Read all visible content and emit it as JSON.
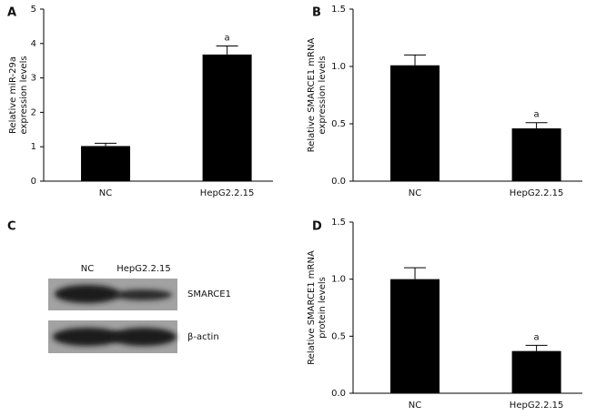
{
  "chart_data": [
    {
      "type": "bar",
      "panel": "A",
      "ylabel": [
        "Relative miR-29a",
        "expression levels"
      ],
      "categories": [
        "NC",
        "HepG2.2.15"
      ],
      "values": [
        1.02,
        3.68
      ],
      "errors": [
        0.08,
        0.25
      ],
      "significance": [
        null,
        "a"
      ],
      "color": "#000000",
      "ylim": [
        0,
        5
      ],
      "yticks": [
        0,
        1,
        2,
        3,
        4,
        5
      ]
    },
    {
      "type": "bar",
      "panel": "B",
      "ylabel": [
        "Relative SMARCE1 mRNA",
        "expression levels"
      ],
      "categories": [
        "NC",
        "HepG2.2.15"
      ],
      "values": [
        1.01,
        0.46
      ],
      "errors": [
        0.09,
        0.05
      ],
      "significance": [
        null,
        "a"
      ],
      "color": "#000000",
      "ylim": [
        0,
        1.5
      ],
      "yticks": [
        {
          "value": 0,
          "label": "0.0"
        },
        0.5,
        {
          "value": 1,
          "label": "1.0"
        },
        1.5
      ]
    },
    {
      "type": "bar",
      "panel": "D",
      "ylabel": [
        "Relative SMARCE1 mRNA",
        "protein levels"
      ],
      "categories": [
        "NC",
        "HepG2.2.15"
      ],
      "values": [
        1.0,
        0.37
      ],
      "errors": [
        0.1,
        0.05
      ],
      "significance": [
        null,
        "a"
      ],
      "color": "#000000",
      "ylim": [
        0,
        1.5
      ],
      "yticks": [
        {
          "value": 0,
          "label": "0.0"
        },
        0.5,
        {
          "value": 1,
          "label": "1.0"
        },
        1.5
      ]
    }
  ],
  "blot": {
    "panel": "C",
    "lanes": [
      "NC",
      "HepG2.2.15"
    ],
    "bands": [
      "SMARCE1",
      "β-actin"
    ]
  }
}
